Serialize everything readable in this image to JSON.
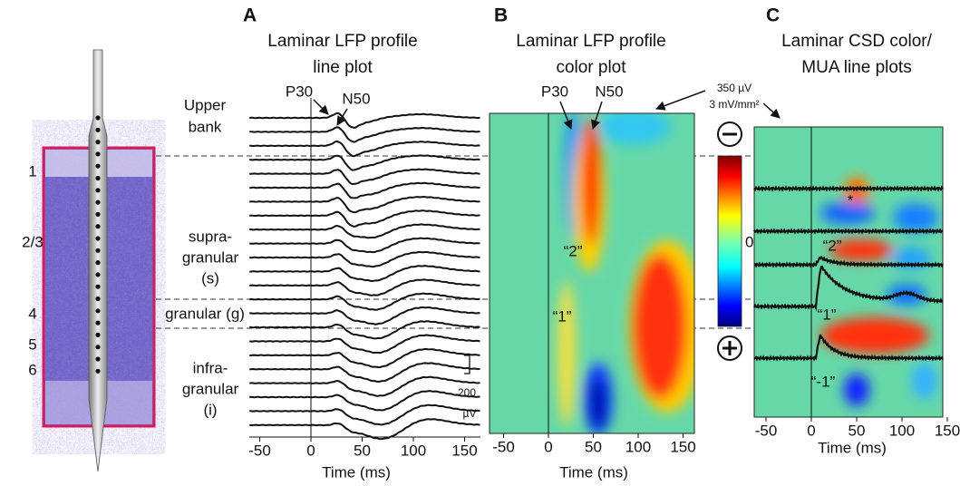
{
  "layers": [
    "1",
    "2/3",
    "4",
    "5",
    "6"
  ],
  "panel_a": {
    "letter": "A",
    "title": [
      "Laminar LFP profile",
      "line plot"
    ],
    "peaks": [
      "P30",
      "N50"
    ],
    "regions": {
      "upper": [
        "Upper",
        "bank"
      ],
      "supra": [
        "supra-",
        "granular",
        "(s)"
      ],
      "granular": "granular (g)",
      "infra": [
        "infra-",
        "granular",
        "(i)"
      ]
    },
    "scale": [
      "200",
      "µV"
    ],
    "xticks": [
      -50,
      0,
      50,
      100,
      150
    ],
    "xlabel": "Time (ms)"
  },
  "panel_b": {
    "letter": "B",
    "title": [
      "Laminar LFP profile",
      "color plot"
    ],
    "peaks": [
      "P30",
      "N50"
    ],
    "sinks": [
      "“2”",
      "“1”"
    ],
    "scale": [
      "350 µV",
      "3 mV/mm²"
    ],
    "colorbar_zero": "0",
    "xticks": [
      -50,
      0,
      50,
      100,
      150
    ],
    "xlabel": "Time (ms)"
  },
  "panel_c": {
    "letter": "C",
    "title": [
      "Laminar CSD color/",
      "MUA line plots"
    ],
    "marks": [
      "*",
      "“2”",
      "“1”",
      "“-1”"
    ],
    "xticks": [
      -50,
      0,
      50,
      100,
      150
    ],
    "xlabel": "Time (ms)"
  }
}
